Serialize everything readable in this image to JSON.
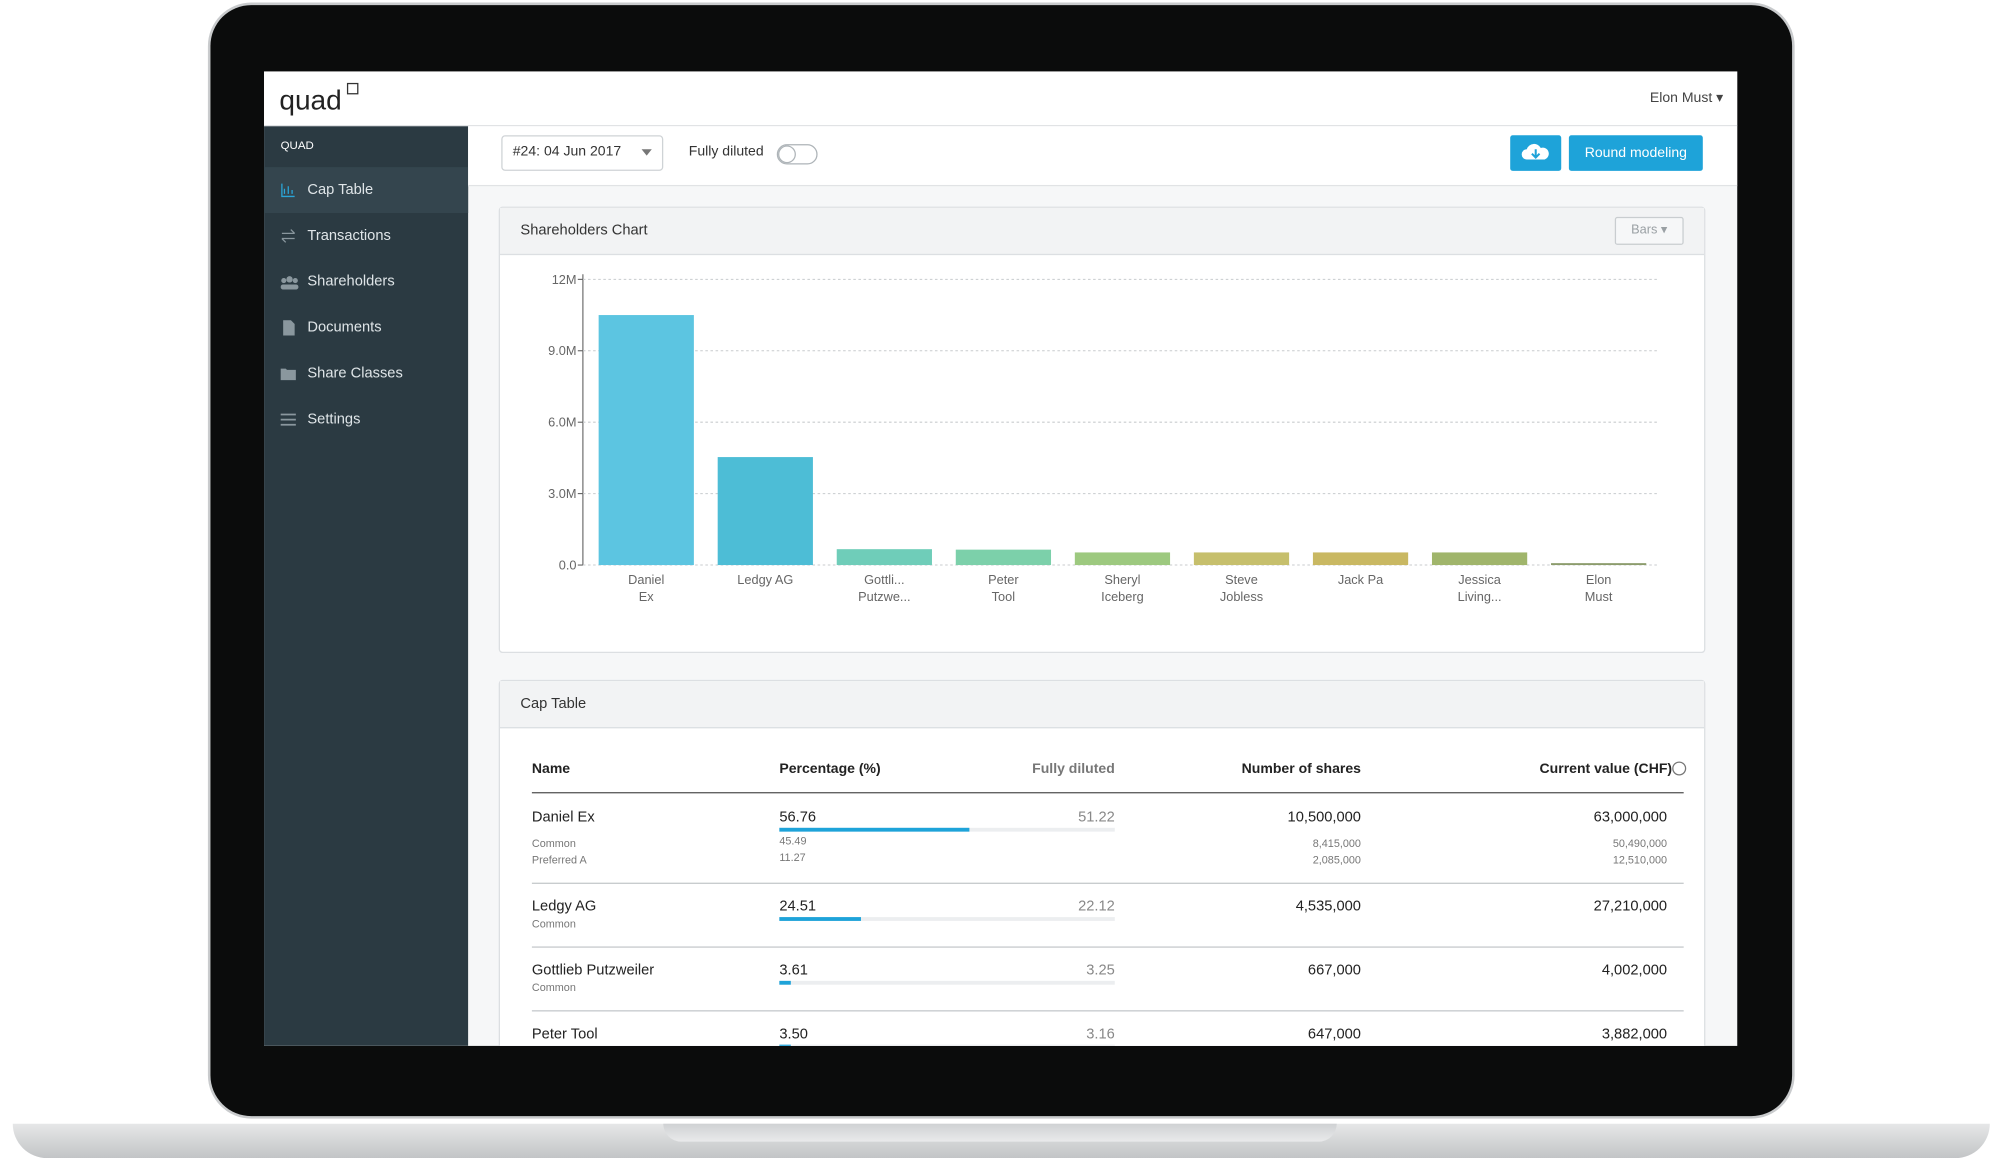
{
  "header": {
    "logo": "quad",
    "user": "Elon Must"
  },
  "sidebar": {
    "title": "QUAD",
    "items": [
      "Cap Table",
      "Transactions",
      "Shareholders",
      "Documents",
      "Share Classes",
      "Settings"
    ]
  },
  "toolbar": {
    "round": "#24: 04 Jun 2017",
    "toggle": "Fully diluted",
    "button": "Round modeling"
  },
  "chart_panel": {
    "title": "Shareholders Chart",
    "mode": "Bars"
  },
  "chart_data": {
    "type": "bar",
    "categories": [
      "Daniel\nEx",
      "Ledgy AG",
      "Gottli...\nPutzwe...",
      "Peter\nTool",
      "Sheryl\nIceberg",
      "Steve\nJobless",
      "Jack Pa",
      "Jessica\nLiving...",
      "Elon\nMust"
    ],
    "values": [
      10500000,
      4535000,
      667000,
      647000,
      530000,
      530000,
      530000,
      530000,
      80000
    ],
    "colors": [
      "#5cc5e1",
      "#4dbdd6",
      "#6fcdb9",
      "#7cd0aa",
      "#9dc97f",
      "#c6bf6c",
      "#c9b862",
      "#a0b56b",
      "#8c9c6c"
    ],
    "ylim": [
      0,
      12000000
    ],
    "yticks": [
      {
        "value": 0,
        "label": "0.0"
      },
      {
        "value": 3000000,
        "label": "3.0M"
      },
      {
        "value": 6000000,
        "label": "6.0M"
      },
      {
        "value": 9000000,
        "label": "9.0M"
      },
      {
        "value": 12000000,
        "label": "12M"
      }
    ],
    "grid": true
  },
  "table_panel": {
    "title": "Cap Table",
    "columns": [
      "Name",
      "Percentage (%)",
      "Fully diluted",
      "Number of shares",
      "Current value (CHF)"
    ],
    "rows": [
      {
        "name": "Daniel Ex",
        "classes": [
          "Common",
          "Preferred A"
        ],
        "percentage": "56.76",
        "class_percentages": [
          "45.49",
          "11.27"
        ],
        "fully_diluted": "51.22",
        "shares": "10,500,000",
        "class_shares": [
          "8,415,000",
          "2,085,000"
        ],
        "value": "63,000,000",
        "class_values": [
          "50,490,000",
          "12,510,000"
        ]
      },
      {
        "name": "Ledgy AG",
        "classes": [
          "Common"
        ],
        "percentage": "24.51",
        "class_percentages": [],
        "fully_diluted": "22.12",
        "shares": "4,535,000",
        "class_shares": [],
        "value": "27,210,000",
        "class_values": []
      },
      {
        "name": "Gottlieb Putzweiler",
        "classes": [
          "Common"
        ],
        "percentage": "3.61",
        "class_percentages": [],
        "fully_diluted": "3.25",
        "shares": "667,000",
        "class_shares": [],
        "value": "4,002,000",
        "class_values": []
      },
      {
        "name": "Peter Tool",
        "classes": [],
        "percentage": "3.50",
        "class_percentages": [],
        "fully_diluted": "3.16",
        "shares": "647,000",
        "class_shares": [],
        "value": "3,882,000",
        "class_values": []
      }
    ]
  }
}
